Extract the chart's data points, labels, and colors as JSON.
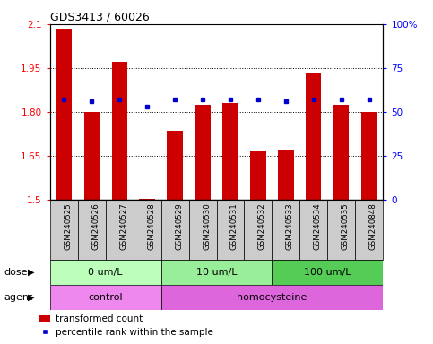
{
  "title": "GDS3413 / 60026",
  "samples": [
    "GSM240525",
    "GSM240526",
    "GSM240527",
    "GSM240528",
    "GSM240529",
    "GSM240530",
    "GSM240531",
    "GSM240532",
    "GSM240533",
    "GSM240534",
    "GSM240535",
    "GSM240848"
  ],
  "transformed_counts": [
    2.085,
    1.8,
    1.97,
    1.502,
    1.735,
    1.825,
    1.83,
    1.665,
    1.67,
    1.935,
    1.825,
    1.8
  ],
  "percentile_ranks": [
    57,
    56,
    57,
    53,
    57,
    57,
    57,
    57,
    56,
    57,
    57,
    57
  ],
  "bar_bottom": 1.5,
  "ylim_left": [
    1.5,
    2.1
  ],
  "ylim_right": [
    0,
    100
  ],
  "yticks_left": [
    1.5,
    1.65,
    1.8,
    1.95,
    2.1
  ],
  "yticks_right": [
    0,
    25,
    50,
    75,
    100
  ],
  "ytick_labels_left": [
    "1.5",
    "1.65",
    "1.80",
    "1.95",
    "2.1"
  ],
  "ytick_labels_right": [
    "0",
    "25",
    "50",
    "75",
    "100%"
  ],
  "bar_color": "#cc0000",
  "dot_color": "#0000cc",
  "dose_groups": [
    {
      "label": "0 um/L",
      "start": 0,
      "end": 4,
      "color": "#bbffbb"
    },
    {
      "label": "10 um/L",
      "start": 4,
      "end": 8,
      "color": "#99ee99"
    },
    {
      "label": "100 um/L",
      "start": 8,
      "end": 12,
      "color": "#55cc55"
    }
  ],
  "agent_groups": [
    {
      "label": "control",
      "start": 0,
      "end": 4,
      "color": "#ee88ee"
    },
    {
      "label": "homocysteine",
      "start": 4,
      "end": 12,
      "color": "#dd66dd"
    }
  ],
  "dose_label": "dose",
  "agent_label": "agent",
  "legend_bar_label": "transformed count",
  "legend_dot_label": "percentile rank within the sample",
  "xtick_bg": "#cccccc",
  "grid_color": "#000000"
}
